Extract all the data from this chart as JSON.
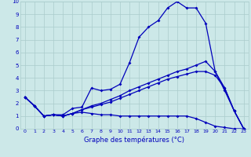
{
  "xlabel": "Graphe des températures (°C)",
  "xlim": [
    -0.5,
    23.5
  ],
  "ylim": [
    0,
    10
  ],
  "xticks": [
    0,
    1,
    2,
    3,
    4,
    5,
    6,
    7,
    8,
    9,
    10,
    11,
    12,
    13,
    14,
    15,
    16,
    17,
    18,
    19,
    20,
    21,
    22,
    23
  ],
  "yticks": [
    0,
    1,
    2,
    3,
    4,
    5,
    6,
    7,
    8,
    9,
    10
  ],
  "bg_color": "#cce8e8",
  "grid_color": "#aacccc",
  "line_color": "#0000bb",
  "series1_x": [
    0,
    1,
    2,
    3,
    4,
    5,
    6,
    7,
    8,
    9,
    10,
    11,
    12,
    13,
    14,
    15,
    16,
    17,
    18,
    19,
    20,
    21,
    22,
    23
  ],
  "series1_y": [
    2.5,
    1.8,
    1.0,
    1.1,
    1.1,
    1.6,
    1.7,
    3.2,
    3.0,
    3.1,
    3.5,
    5.2,
    7.2,
    8.0,
    8.5,
    9.5,
    10.0,
    9.5,
    9.5,
    8.3,
    4.5,
    3.0,
    1.4,
    0.0
  ],
  "series2_x": [
    0,
    1,
    2,
    3,
    4,
    5,
    6,
    7,
    8,
    9,
    10,
    11,
    12,
    13,
    14,
    15,
    16,
    17,
    18,
    19,
    20,
    21,
    22,
    23
  ],
  "series2_y": [
    2.5,
    1.8,
    1.0,
    1.1,
    1.0,
    1.2,
    1.3,
    1.2,
    1.1,
    1.1,
    1.0,
    1.0,
    1.0,
    1.0,
    1.0,
    1.0,
    1.0,
    1.0,
    0.8,
    0.5,
    0.2,
    0.1,
    0.0,
    0.0
  ],
  "series3_x": [
    0,
    1,
    2,
    3,
    4,
    5,
    6,
    7,
    8,
    9,
    10,
    11,
    12,
    13,
    14,
    15,
    16,
    17,
    18,
    19,
    20,
    21,
    22,
    23
  ],
  "series3_y": [
    2.5,
    1.8,
    1.0,
    1.1,
    1.0,
    1.2,
    1.5,
    1.8,
    2.0,
    2.3,
    2.6,
    3.0,
    3.3,
    3.6,
    3.9,
    4.2,
    4.5,
    4.7,
    5.0,
    5.3,
    4.5,
    3.2,
    1.4,
    0.0
  ],
  "series4_x": [
    0,
    1,
    2,
    3,
    4,
    5,
    6,
    7,
    8,
    9,
    10,
    11,
    12,
    13,
    14,
    15,
    16,
    17,
    18,
    19,
    20,
    21,
    22,
    23
  ],
  "series4_y": [
    2.5,
    1.8,
    1.0,
    1.1,
    1.0,
    1.2,
    1.5,
    1.7,
    1.9,
    2.1,
    2.4,
    2.7,
    3.0,
    3.3,
    3.6,
    3.9,
    4.1,
    4.3,
    4.5,
    4.5,
    4.2,
    3.2,
    1.4,
    0.0
  ]
}
